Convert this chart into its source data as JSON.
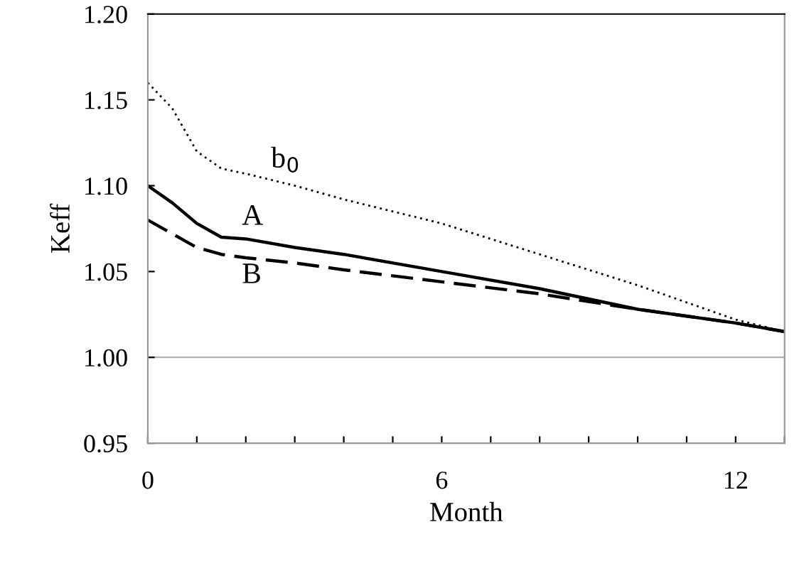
{
  "chart_data": {
    "type": "line",
    "xlabel": "Month",
    "ylabel": "Keff",
    "xlim": [
      0,
      13
    ],
    "ylim": [
      0.95,
      1.2
    ],
    "xticks": [
      0,
      {
        "value": 1,
        "label": null
      },
      {
        "value": 2,
        "label": null
      },
      {
        "value": 3,
        "label": null
      },
      {
        "value": 4,
        "label": null
      },
      {
        "value": 5,
        "label": null
      },
      6,
      {
        "value": 7,
        "label": null
      },
      {
        "value": 8,
        "label": null
      },
      {
        "value": 9,
        "label": null
      },
      {
        "value": 10,
        "label": null
      },
      {
        "value": 11,
        "label": null
      },
      12,
      {
        "value": 13,
        "label": null
      }
    ],
    "yticks": [
      {
        "value": 0.95,
        "label": "0.95"
      },
      {
        "value": 1.0,
        "label": "1.00"
      },
      {
        "value": 1.05,
        "label": "1.05"
      },
      {
        "value": 1.1,
        "label": "1.10"
      },
      {
        "value": 1.15,
        "label": "1.15"
      },
      {
        "value": 1.2,
        "label": "1.20"
      }
    ],
    "x": [
      0,
      0.5,
      1,
      1.5,
      2,
      3,
      4,
      6,
      8,
      10,
      12,
      13
    ],
    "series": [
      {
        "name": "b$_{0}$",
        "color": "#000000",
        "line_style": "dotted",
        "values": [
          1.16,
          1.145,
          1.12,
          1.11,
          1.107,
          1.1,
          1.092,
          1.078,
          1.06,
          1.042,
          1.022,
          1.015
        ]
      },
      {
        "name": "A",
        "color": "#000000",
        "line_style": "solid",
        "values": [
          1.1,
          1.09,
          1.078,
          1.07,
          1.069,
          1.064,
          1.06,
          1.05,
          1.04,
          1.028,
          1.02,
          1.015
        ]
      },
      {
        "name": "B",
        "color": "#000000",
        "line_style": "dashed",
        "values": [
          1.08,
          1.072,
          1.064,
          1.06,
          1.058,
          1.055,
          1.051,
          1.044,
          1.037,
          1.028,
          1.02,
          1.015
        ]
      }
    ],
    "ref_lines": [
      {
        "axis": "y",
        "value": 1.0,
        "label": null,
        "color": "#b0b0b0"
      }
    ],
    "grid": false,
    "legend": false
  }
}
